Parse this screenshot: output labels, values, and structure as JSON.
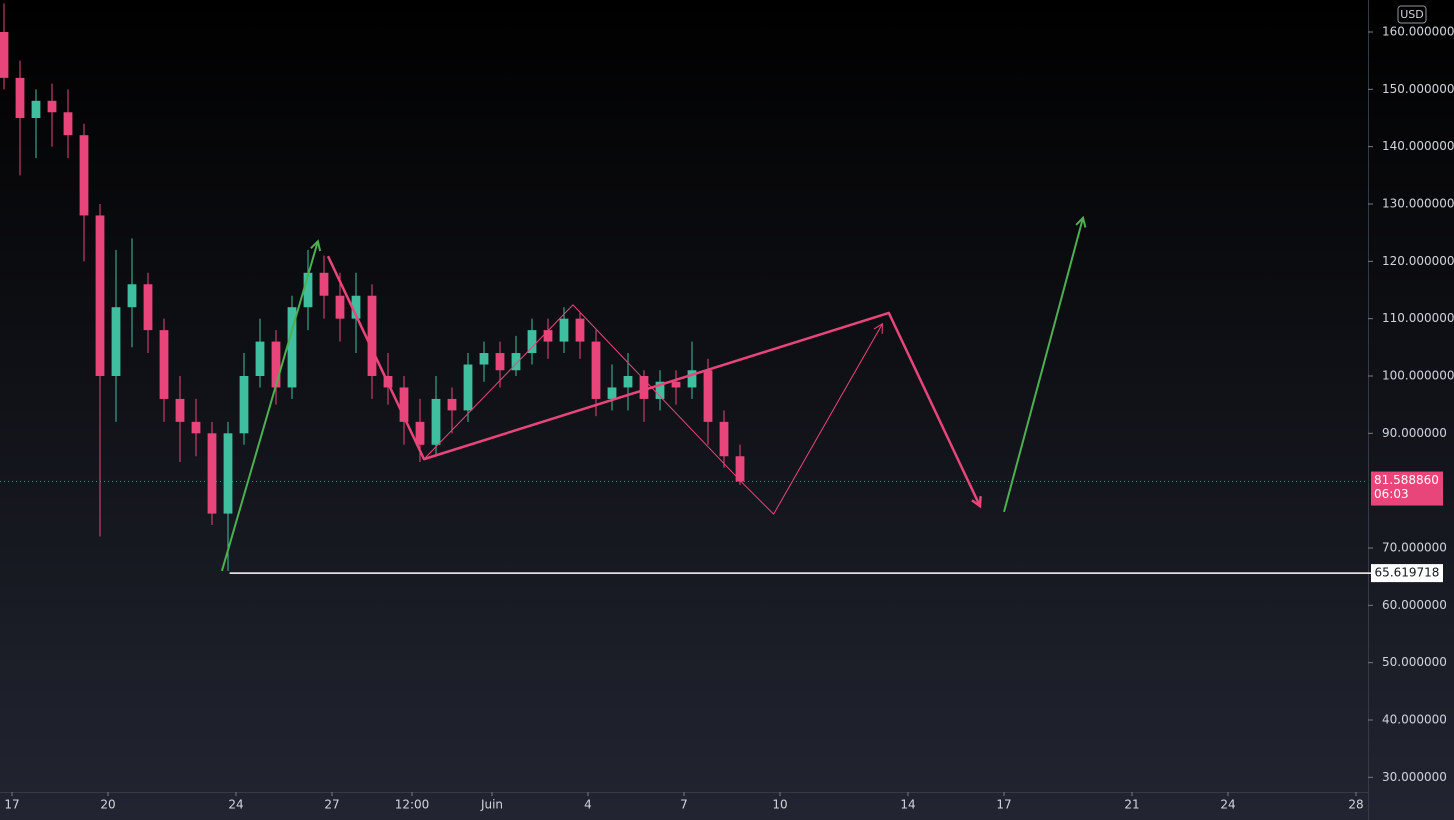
{
  "chart_data": {
    "type": "candlestick",
    "currency": "USD",
    "x": [
      -0.25,
      0.25,
      0.75,
      1.25,
      1.75,
      2.25,
      2.75,
      3.25,
      3.75,
      4.25,
      4.75,
      5.25,
      5.75,
      6.25,
      6.75,
      7.25,
      7.75,
      8.25,
      8.75,
      9.25,
      9.75,
      10.25,
      10.75,
      11.25,
      11.75,
      12.25,
      12.75,
      13.25,
      13.75,
      14.25,
      14.75,
      15.25,
      15.75,
      16.25,
      16.75,
      17.25,
      17.75,
      18.25,
      18.75,
      19.25,
      19.75,
      20.25,
      20.75,
      21.25,
      21.75,
      22.25,
      22.75
    ],
    "open": [
      160,
      152,
      145,
      148,
      146,
      142,
      128,
      100,
      112,
      116,
      108,
      96,
      92,
      90,
      76,
      90,
      100,
      106,
      98,
      112,
      118,
      114,
      110,
      114,
      100,
      98,
      92,
      88,
      96,
      94,
      102,
      104,
      101,
      104,
      108,
      106,
      110,
      106,
      96,
      98,
      100,
      96,
      99,
      98,
      101,
      92,
      86
    ],
    "high": [
      165,
      155,
      150,
      151,
      150,
      144,
      130,
      122,
      124,
      118,
      110,
      100,
      96,
      92,
      92,
      104,
      110,
      108,
      114,
      122,
      121,
      118,
      118,
      116,
      104,
      100,
      96,
      100,
      98,
      104,
      106,
      106,
      107,
      110,
      110,
      112,
      111,
      108,
      102,
      104,
      101,
      101,
      101,
      106,
      103,
      94,
      88
    ],
    "low": [
      150,
      135,
      138,
      140,
      138,
      120,
      72,
      92,
      105,
      104,
      92,
      85,
      86,
      74,
      66,
      88,
      98,
      95,
      96,
      108,
      110,
      106,
      104,
      96,
      95,
      88,
      85,
      86,
      90,
      92,
      99,
      98,
      100,
      102,
      103,
      104,
      103,
      93,
      94,
      94,
      92,
      94,
      95,
      96,
      88,
      84,
      81
    ],
    "close": [
      152,
      145,
      148,
      146,
      142,
      128,
      100,
      112,
      116,
      108,
      96,
      92,
      90,
      76,
      90,
      100,
      106,
      98,
      112,
      118,
      114,
      110,
      114,
      100,
      98,
      92,
      88,
      96,
      94,
      102,
      104,
      101,
      104,
      108,
      106,
      110,
      106,
      96,
      98,
      100,
      96,
      99,
      98,
      101,
      92,
      86,
      81.58886
    ],
    "up_color": "#3fbfa0",
    "down_color": "#e8457a",
    "xlim": [
      -0.375,
      42.375
    ],
    "xticks": [
      {
        "value": 0,
        "label": "17"
      },
      {
        "value": 3,
        "label": "20"
      },
      {
        "value": 7,
        "label": "24"
      },
      {
        "value": 10,
        "label": "27"
      },
      {
        "value": 12.5,
        "label": "12:00"
      },
      {
        "value": 15,
        "label": "Juin"
      },
      {
        "value": 18,
        "label": "4"
      },
      {
        "value": 21,
        "label": "7"
      },
      {
        "value": 24,
        "label": "10"
      },
      {
        "value": 28,
        "label": "14"
      },
      {
        "value": 31,
        "label": "17"
      },
      {
        "value": 35,
        "label": "21"
      },
      {
        "value": 38,
        "label": "24"
      },
      {
        "value": 42,
        "label": "28"
      }
    ],
    "ylim": [
      27.44,
      165.58
    ],
    "yticks": [
      {
        "value": 160,
        "label": "160.000000"
      },
      {
        "value": 150,
        "label": "150.000000"
      },
      {
        "value": 140,
        "label": "140.000000"
      },
      {
        "value": 130,
        "label": "130.000000"
      },
      {
        "value": 120,
        "label": "120.000000"
      },
      {
        "value": 110,
        "label": "110.000000"
      },
      {
        "value": 100,
        "label": "100.000000"
      },
      {
        "value": 90,
        "label": "90.000000"
      },
      {
        "value": 70,
        "label": "70.000000"
      },
      {
        "value": 60,
        "label": "60.000000"
      },
      {
        "value": 50,
        "label": "50.000000"
      },
      {
        "value": 40,
        "label": "40.000000"
      },
      {
        "value": 30,
        "label": "30.000000"
      }
    ],
    "last_price": {
      "value": 81.58886,
      "label": "81.588860"
    },
    "countdown": "06:03",
    "support": {
      "value": 65.619718,
      "x_start": 6.8
    },
    "drawings": [
      {
        "color": "#4caf50",
        "width": 2,
        "points": [
          [
            6.56,
            66
          ],
          [
            9.56,
            123.5
          ]
        ]
      },
      {
        "color": "#e8457a",
        "width": 2.5,
        "points": [
          [
            9.875,
            120.9
          ],
          [
            12.875,
            85.5
          ],
          [
            27.4,
            111.0
          ],
          [
            30.25,
            77.3
          ]
        ]
      },
      {
        "color": "#e8457a",
        "width": 1,
        "points": [
          [
            12.875,
            85.5
          ],
          [
            17.53,
            112.4
          ],
          [
            22.8,
            81.5
          ],
          [
            23.8,
            75.9
          ],
          [
            27.2,
            109.1
          ]
        ]
      },
      {
        "color": "#4caf50",
        "width": 2,
        "points": [
          [
            31.0,
            76.3
          ],
          [
            33.47,
            127.6
          ]
        ]
      }
    ]
  }
}
